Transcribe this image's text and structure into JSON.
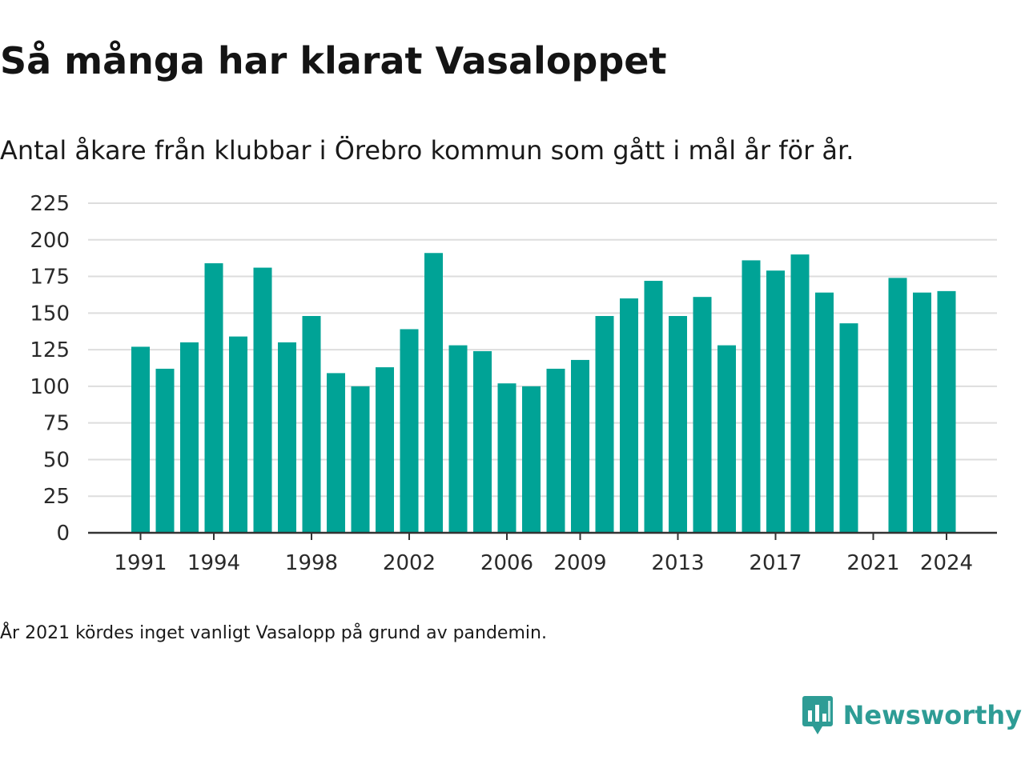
{
  "title": "Så många har klarat Vasaloppet",
  "subtitle": "Antal åkare från klubbar i Örebro kommun som gått i mål år för år.",
  "note": "År 2021 kördes inget vanligt Vasalopp på grund av pandemin.",
  "brand": {
    "name": "Newsworthy",
    "icon": "newsworthy-logo-icon",
    "color": "#2e9c95"
  },
  "colors": {
    "bar": "#00a396",
    "grid": "#dddddd",
    "axis": "#333333"
  },
  "chart_data": {
    "type": "bar",
    "title": "Så många har klarat Vasaloppet",
    "subtitle": "Antal åkare från klubbar i Örebro kommun som gått i mål år för år.",
    "xlabel": "",
    "ylabel": "",
    "ylim": [
      0,
      225
    ],
    "yticks": [
      0,
      25,
      50,
      75,
      100,
      125,
      150,
      175,
      200,
      225
    ],
    "grid": true,
    "legend": "none",
    "categories": [
      1991,
      1992,
      1993,
      1994,
      1995,
      1996,
      1997,
      1998,
      1999,
      2000,
      2001,
      2002,
      2003,
      2004,
      2005,
      2006,
      2007,
      2008,
      2009,
      2010,
      2011,
      2012,
      2013,
      2014,
      2015,
      2016,
      2017,
      2018,
      2019,
      2020,
      2021,
      2022,
      2023,
      2024
    ],
    "values": [
      127,
      112,
      130,
      184,
      134,
      181,
      130,
      148,
      109,
      100,
      113,
      139,
      191,
      128,
      124,
      102,
      100,
      112,
      118,
      148,
      160,
      172,
      148,
      161,
      128,
      186,
      179,
      190,
      164,
      143,
      null,
      174,
      164,
      165
    ],
    "xtick_labels": [
      "1991",
      "1994",
      "1998",
      "2002",
      "2006",
      "2009",
      "2013",
      "2017",
      "2021",
      "2024"
    ]
  }
}
